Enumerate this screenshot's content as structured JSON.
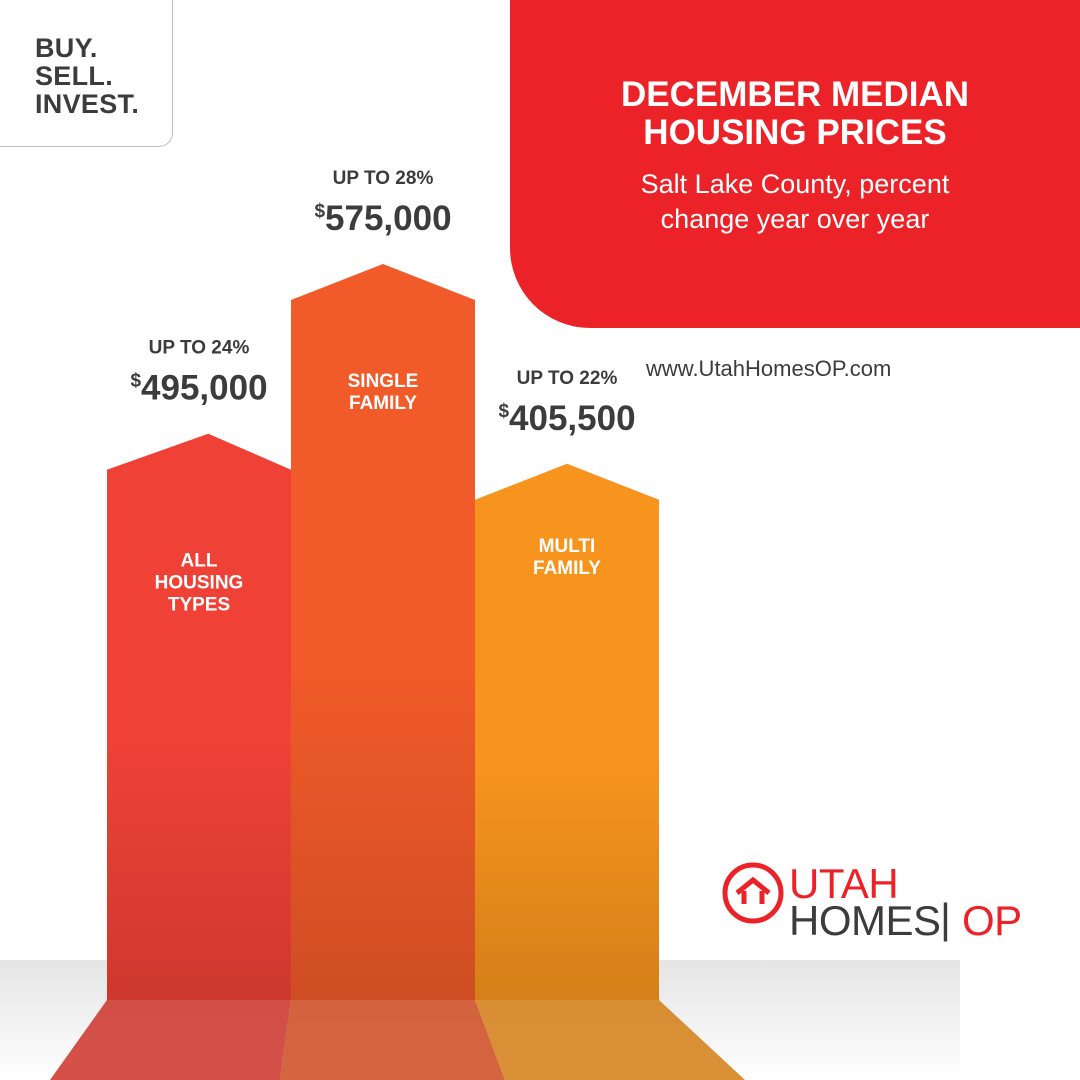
{
  "tagline": [
    "BUY.",
    "SELL.",
    "INVEST."
  ],
  "header": {
    "title_lines": [
      "DECEMBER MEDIAN",
      "HOUSING PRICES"
    ],
    "subtitle_lines": [
      "Salt Lake County, percent",
      "change year over year"
    ]
  },
  "website": "www.UtahHomesOP.com",
  "logo": {
    "word1": "UTAH",
    "word2": "HOMES",
    "separator": "|",
    "word3": "OP"
  },
  "colors": {
    "brand_red": "#ec2229",
    "bar_all": "#ef4136",
    "bar_single": "#f15a29",
    "bar_multi": "#f7941d",
    "text_dark": "#3c3c3c"
  },
  "chart_data": {
    "type": "bar",
    "title": "DECEMBER MEDIAN HOUSING PRICES",
    "subtitle": "Salt Lake County, percent change year over year",
    "categories": [
      "ALL HOUSING TYPES",
      "SINGLE FAMILY",
      "MULTI FAMILY"
    ],
    "category_lines": [
      [
        "ALL",
        "HOUSING",
        "TYPES"
      ],
      [
        "SINGLE",
        "FAMILY"
      ],
      [
        "MULTI",
        "FAMILY"
      ]
    ],
    "series": [
      {
        "values": [
          495000,
          575000,
          405500
        ],
        "value_labels": [
          "495,000",
          "575,000",
          "405,500"
        ],
        "change_labels": [
          "UP TO 24%",
          "UP TO 28%",
          "UP TO 22%"
        ],
        "change_percent": [
          24,
          28,
          22
        ]
      }
    ],
    "currency_symbol": "$",
    "grid": false,
    "legend": "none"
  }
}
